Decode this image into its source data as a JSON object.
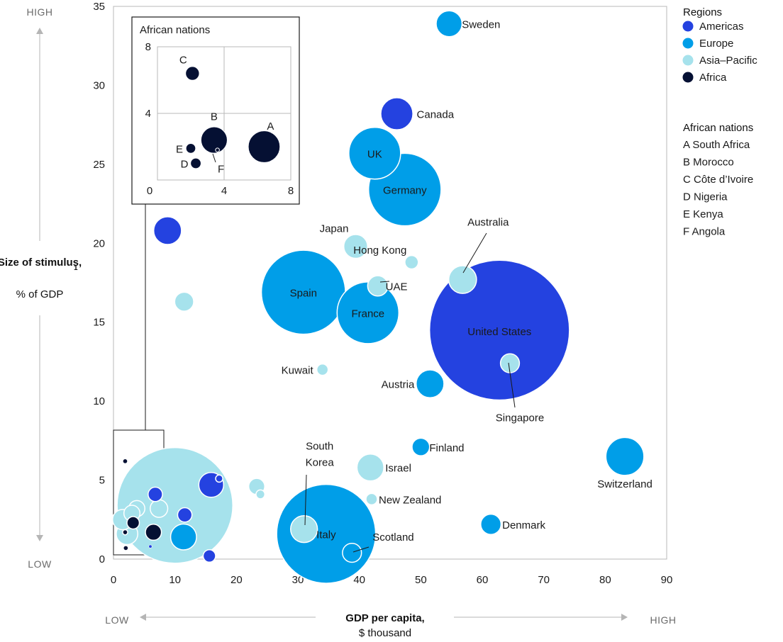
{
  "chart_data": {
    "type": "scatter",
    "subtype": "bubble",
    "xlabel": "GDP per capita,",
    "xlabel_unit": "$ thousand",
    "ylabel": "Size of stimulus,",
    "ylabel_sup": "1",
    "ylabel_unit": "% of GDP",
    "x_low": "LOW",
    "x_high": "HIGH",
    "y_low": "LOW",
    "y_high": "HIGH",
    "xlim": [
      0,
      90
    ],
    "ylim": [
      0,
      35
    ],
    "xticks": [
      0,
      10,
      20,
      30,
      40,
      50,
      60,
      70,
      80,
      90
    ],
    "yticks": [
      0,
      5,
      10,
      15,
      20,
      25,
      30,
      35
    ],
    "grid": false,
    "legend_position": "top-right",
    "colors": {
      "Americas": "#2442e0",
      "Europe": "#009ee8",
      "Asia–Pacific": "#a6e2ec",
      "Africa": "#051033"
    },
    "legend": {
      "title": "Regions",
      "items": [
        {
          "label": "Americas",
          "region": "Americas"
        },
        {
          "label": "Europe",
          "region": "Europe"
        },
        {
          "label": "Asia–Pacific",
          "region": "Asia–Pacific"
        },
        {
          "label": "Africa",
          "region": "Africa"
        }
      ]
    },
    "african_legend": {
      "title": "African nations",
      "items": [
        "A South Africa",
        "B Morocco",
        "C Côte d’Ivoire",
        "D Nigeria",
        "E Kenya",
        "F Angola"
      ]
    },
    "points": [
      {
        "label": "Sweden",
        "x": 54.6,
        "y": 33.9,
        "size": 1.3,
        "region": "Europe"
      },
      {
        "label": "Canada",
        "x": 46.1,
        "y": 28.2,
        "size": 2.0,
        "region": "Americas"
      },
      {
        "label": "UK",
        "x": 42.5,
        "y": 25.7,
        "size": 5.2,
        "region": "Europe"
      },
      {
        "label": "Germany",
        "x": 47.4,
        "y": 23.4,
        "size": 10.2,
        "region": "Europe"
      },
      {
        "label": "Japan",
        "x": 39.4,
        "y": 19.8,
        "size": 1.1,
        "region": "Asia–Pacific"
      },
      {
        "label": "Hong Kong",
        "x": 48.5,
        "y": 18.8,
        "size": 0.35,
        "region": "Asia–Pacific"
      },
      {
        "label": "Australia",
        "x": 56.8,
        "y": 17.7,
        "size": 1.5,
        "region": "Asia–Pacific"
      },
      {
        "label": "UAE",
        "x": 43.0,
        "y": 17.3,
        "size": 0.8,
        "region": "Asia–Pacific"
      },
      {
        "label": "Spain",
        "x": 30.9,
        "y": 16.9,
        "size": 13.7,
        "region": "Europe"
      },
      {
        "label": "France",
        "x": 41.4,
        "y": 15.6,
        "size": 7.4,
        "region": "Europe"
      },
      {
        "label": "United States",
        "x": 62.8,
        "y": 14.5,
        "size": 38.0,
        "region": "Americas"
      },
      {
        "label": "Singapore",
        "x": 64.5,
        "y": 12.4,
        "size": 0.7,
        "region": "Asia–Pacific"
      },
      {
        "label": "Kuwait",
        "x": 34.0,
        "y": 12.0,
        "size": 0.25,
        "region": "Asia–Pacific"
      },
      {
        "label": "Austria",
        "x": 51.5,
        "y": 11.1,
        "size": 1.5,
        "region": "Europe"
      },
      {
        "label": "Finland",
        "x": 50.0,
        "y": 7.1,
        "size": 0.6,
        "region": "Europe"
      },
      {
        "label": "Israel",
        "x": 41.8,
        "y": 5.8,
        "size": 1.4,
        "region": "Asia–Pacific"
      },
      {
        "label": "Switzerland",
        "x": 83.2,
        "y": 6.5,
        "size": 2.8,
        "region": "Europe"
      },
      {
        "label": "South Korea",
        "x": 31.0,
        "y": 1.9,
        "size": 1.4,
        "region": "Asia–Pacific"
      },
      {
        "label": "New Zealand",
        "x": 42.0,
        "y": 3.8,
        "size": 0.25,
        "region": "Asia–Pacific"
      },
      {
        "label": "Italy",
        "x": 34.6,
        "y": 1.6,
        "size": 19.0,
        "region": "Europe"
      },
      {
        "label": "Scotland",
        "x": 38.8,
        "y": 0.4,
        "size": 0.7,
        "region": "Europe"
      },
      {
        "label": "Denmark",
        "x": 61.4,
        "y": 2.2,
        "size": 0.8,
        "region": "Europe"
      },
      {
        "label": "",
        "x": 8.8,
        "y": 20.8,
        "size": 1.5,
        "region": "Americas"
      },
      {
        "label": "",
        "x": 11.5,
        "y": 16.3,
        "size": 0.7,
        "region": "Asia–Pacific"
      },
      {
        "label": "",
        "x": 10.0,
        "y": 3.4,
        "size": 26.0,
        "region": "Asia–Pacific"
      },
      {
        "label": "",
        "x": 15.9,
        "y": 4.7,
        "size": 1.2,
        "region": "Americas"
      },
      {
        "label": "",
        "x": 17.2,
        "y": 5.1,
        "size": 0.1,
        "region": "Americas"
      },
      {
        "label": "",
        "x": 11.6,
        "y": 2.8,
        "size": 0.4,
        "region": "Americas"
      },
      {
        "label": "",
        "x": 11.4,
        "y": 1.4,
        "size": 1.3,
        "region": "Europe"
      },
      {
        "label": "",
        "x": 15.6,
        "y": 0.2,
        "size": 0.3,
        "region": "Americas"
      },
      {
        "label": "",
        "x": 23.3,
        "y": 4.6,
        "size": 0.5,
        "region": "Asia–Pacific"
      },
      {
        "label": "",
        "x": 23.9,
        "y": 4.1,
        "size": 0.15,
        "region": "Asia–Pacific"
      },
      {
        "label": "",
        "x": 6.8,
        "y": 4.1,
        "size": 0.4,
        "region": "Americas"
      },
      {
        "label": "",
        "x": 7.4,
        "y": 3.2,
        "size": 0.6,
        "region": "Asia–Pacific"
      },
      {
        "label": "",
        "x": 6.5,
        "y": 1.7,
        "size": 0.5,
        "region": "Africa"
      },
      {
        "label": "",
        "x": 3.8,
        "y": 3.2,
        "size": 0.5,
        "region": "Asia–Pacific"
      },
      {
        "label": "",
        "x": 3.0,
        "y": 2.9,
        "size": 0.5,
        "region": "Asia–Pacific"
      },
      {
        "label": "",
        "x": 1.5,
        "y": 2.5,
        "size": 0.8,
        "region": "Asia–Pacific"
      },
      {
        "label": "",
        "x": 3.2,
        "y": 2.3,
        "size": 0.3,
        "region": "Africa"
      },
      {
        "label": "",
        "x": 2.2,
        "y": 1.6,
        "size": 0.9,
        "region": "Asia–Pacific"
      },
      {
        "label": "",
        "x": 1.9,
        "y": 6.2,
        "size": 0.05,
        "region": "Africa"
      },
      {
        "label": "",
        "x": 1.9,
        "y": 1.7,
        "size": 0.05,
        "region": "Africa"
      },
      {
        "label": "",
        "x": 2.0,
        "y": 0.7,
        "size": 0.05,
        "region": "Africa"
      },
      {
        "label": "",
        "x": 6.0,
        "y": 0.8,
        "size": 0.02,
        "region": "Americas"
      }
    ],
    "inset": {
      "title": "African nations",
      "xlim": [
        0,
        8
      ],
      "ylim": [
        0,
        8
      ],
      "xticks": [
        0,
        4,
        8
      ],
      "yticks": [
        4,
        8
      ],
      "points": [
        {
          "label": "A",
          "x": 6.4,
          "y": 2.0,
          "size": 3.2,
          "region": "Africa"
        },
        {
          "label": "B",
          "x": 3.4,
          "y": 2.4,
          "size": 2.2,
          "region": "Africa"
        },
        {
          "label": "C",
          "x": 2.1,
          "y": 6.4,
          "size": 0.6,
          "region": "Africa"
        },
        {
          "label": "D",
          "x": 2.3,
          "y": 1.0,
          "size": 0.35,
          "region": "Africa"
        },
        {
          "label": "E",
          "x": 2.0,
          "y": 1.9,
          "size": 0.3,
          "region": "Africa"
        },
        {
          "label": "F",
          "x": 3.6,
          "y": 1.8,
          "size": 0.05,
          "region": "Africa"
        }
      ]
    }
  }
}
